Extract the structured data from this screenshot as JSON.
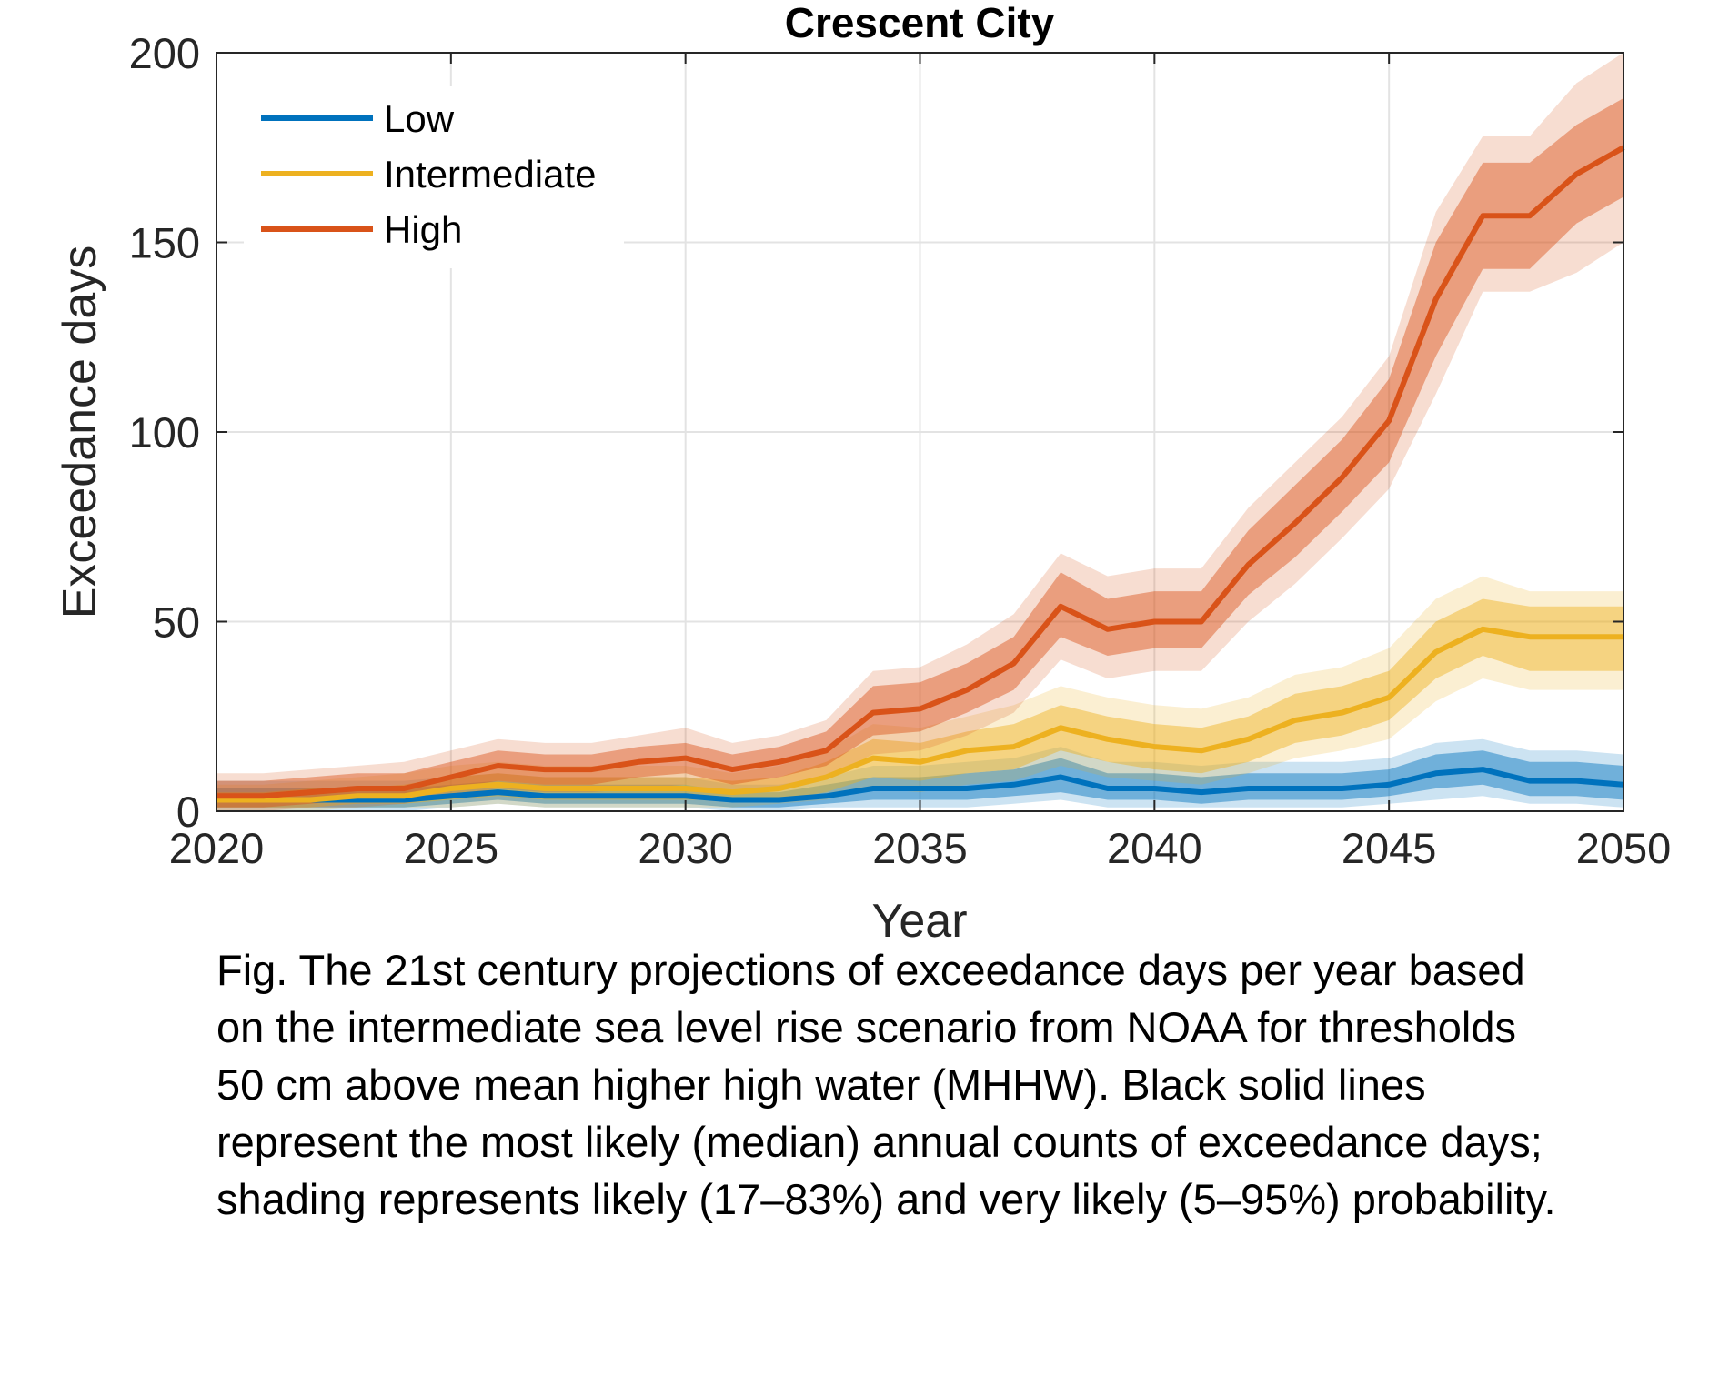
{
  "chart_data": {
    "type": "area",
    "title": "Crescent City",
    "xlabel": "Year",
    "ylabel": "Exceedance days",
    "xlim": [
      2020,
      2050
    ],
    "ylim": [
      0,
      200
    ],
    "xticks": [
      "2020",
      "2025",
      "2030",
      "2035",
      "2040",
      "2045",
      "2050"
    ],
    "yticks": [
      "0",
      "50",
      "100",
      "150",
      "200"
    ],
    "grid": true,
    "legend_position": "top-left",
    "x": [
      2020,
      2021,
      2022,
      2023,
      2024,
      2025,
      2026,
      2027,
      2028,
      2029,
      2030,
      2031,
      2032,
      2033,
      2034,
      2035,
      2036,
      2037,
      2038,
      2039,
      2040,
      2041,
      2042,
      2043,
      2044,
      2045,
      2046,
      2047,
      2048,
      2049,
      2050
    ],
    "series": [
      {
        "name": "Low",
        "color": "#0072BD",
        "median": [
          3,
          3,
          3,
          3,
          3,
          4,
          5,
          4,
          4,
          4,
          4,
          3,
          3,
          4,
          6,
          6,
          6,
          7,
          9,
          6,
          6,
          5,
          6,
          6,
          6,
          7,
          10,
          11,
          8,
          8,
          7
        ],
        "likely": [
          [
            1,
            1,
            1,
            1,
            1,
            2,
            3,
            2,
            2,
            2,
            2,
            1,
            1,
            2,
            3,
            3,
            3,
            4,
            5,
            3,
            3,
            2,
            3,
            3,
            3,
            4,
            6,
            7,
            4,
            4,
            3
          ],
          [
            6,
            6,
            6,
            6,
            6,
            7,
            8,
            7,
            7,
            7,
            7,
            5,
            5,
            7,
            9,
            9,
            10,
            11,
            14,
            10,
            10,
            9,
            10,
            10,
            10,
            11,
            15,
            16,
            13,
            13,
            12
          ]
        ],
        "very_likely": [
          [
            0,
            0,
            0,
            0,
            0,
            1,
            2,
            1,
            1,
            1,
            1,
            0,
            0,
            1,
            1,
            1,
            1,
            2,
            3,
            1,
            1,
            1,
            1,
            1,
            1,
            2,
            3,
            4,
            2,
            2,
            1
          ],
          [
            8,
            8,
            8,
            8,
            8,
            9,
            10,
            9,
            9,
            9,
            9,
            7,
            7,
            9,
            12,
            12,
            13,
            14,
            17,
            13,
            13,
            12,
            13,
            13,
            13,
            14,
            18,
            19,
            16,
            16,
            15
          ]
        ]
      },
      {
        "name": "Intermediate",
        "color": "#EDB120",
        "median": [
          3,
          3,
          3,
          4,
          4,
          6,
          7,
          6,
          6,
          6,
          6,
          5,
          6,
          9,
          14,
          13,
          16,
          17,
          22,
          19,
          17,
          16,
          19,
          24,
          26,
          30,
          42,
          48,
          46,
          46,
          46
        ],
        "likely": [
          [
            1,
            1,
            1,
            2,
            2,
            3,
            4,
            3,
            3,
            3,
            3,
            3,
            3,
            5,
            9,
            8,
            10,
            11,
            16,
            13,
            11,
            10,
            13,
            18,
            20,
            24,
            35,
            41,
            37,
            37,
            37
          ],
          [
            5,
            5,
            6,
            6,
            7,
            9,
            10,
            9,
            9,
            9,
            9,
            8,
            9,
            13,
            19,
            18,
            21,
            23,
            28,
            25,
            23,
            22,
            25,
            31,
            33,
            37,
            50,
            56,
            54,
            54,
            54
          ]
        ],
        "very_likely": [
          [
            0,
            0,
            0,
            1,
            1,
            1,
            2,
            1,
            1,
            1,
            1,
            1,
            2,
            3,
            6,
            5,
            7,
            8,
            12,
            9,
            8,
            7,
            10,
            14,
            16,
            19,
            29,
            35,
            32,
            32,
            32
          ],
          [
            7,
            7,
            8,
            9,
            10,
            12,
            13,
            12,
            12,
            12,
            12,
            10,
            12,
            16,
            23,
            22,
            25,
            28,
            33,
            30,
            28,
            27,
            30,
            36,
            38,
            43,
            56,
            62,
            58,
            58,
            58
          ]
        ]
      },
      {
        "name": "High",
        "color": "#D95319",
        "median": [
          4,
          4,
          5,
          6,
          6,
          9,
          12,
          11,
          11,
          13,
          14,
          11,
          13,
          16,
          26,
          27,
          32,
          39,
          54,
          48,
          50,
          50,
          65,
          76,
          88,
          103,
          135,
          157,
          157,
          168,
          175
        ],
        "likely": [
          [
            1,
            1,
            2,
            3,
            3,
            6,
            8,
            7,
            7,
            9,
            10,
            7,
            9,
            12,
            20,
            21,
            26,
            32,
            46,
            41,
            43,
            43,
            57,
            67,
            79,
            92,
            120,
            143,
            143,
            155,
            162
          ],
          [
            8,
            8,
            9,
            10,
            10,
            13,
            16,
            15,
            15,
            17,
            18,
            15,
            17,
            21,
            33,
            34,
            39,
            46,
            63,
            56,
            58,
            58,
            74,
            86,
            98,
            114,
            150,
            171,
            171,
            181,
            188
          ]
        ],
        "very_likely": [
          [
            0,
            0,
            1,
            1,
            2,
            4,
            6,
            5,
            5,
            6,
            7,
            5,
            6,
            9,
            15,
            16,
            20,
            26,
            40,
            35,
            37,
            37,
            50,
            60,
            72,
            85,
            110,
            137,
            137,
            142,
            150
          ],
          [
            10,
            10,
            11,
            12,
            13,
            16,
            19,
            18,
            18,
            20,
            22,
            18,
            20,
            24,
            37,
            38,
            44,
            52,
            68,
            62,
            64,
            64,
            80,
            92,
            104,
            120,
            158,
            178,
            178,
            192,
            200
          ]
        ]
      }
    ]
  },
  "caption": {
    "lines": [
      "Fig. The 21st century projections of exceedance days per year based",
      "on the intermediate sea level rise scenario from NOAA for thresholds",
      "50 cm above mean higher high water (MHHW). Black solid lines",
      "represent the most likely (median) annual counts of exceedance days;",
      "shading represents likely (17–83%) and very likely (5–95%) probability."
    ]
  }
}
